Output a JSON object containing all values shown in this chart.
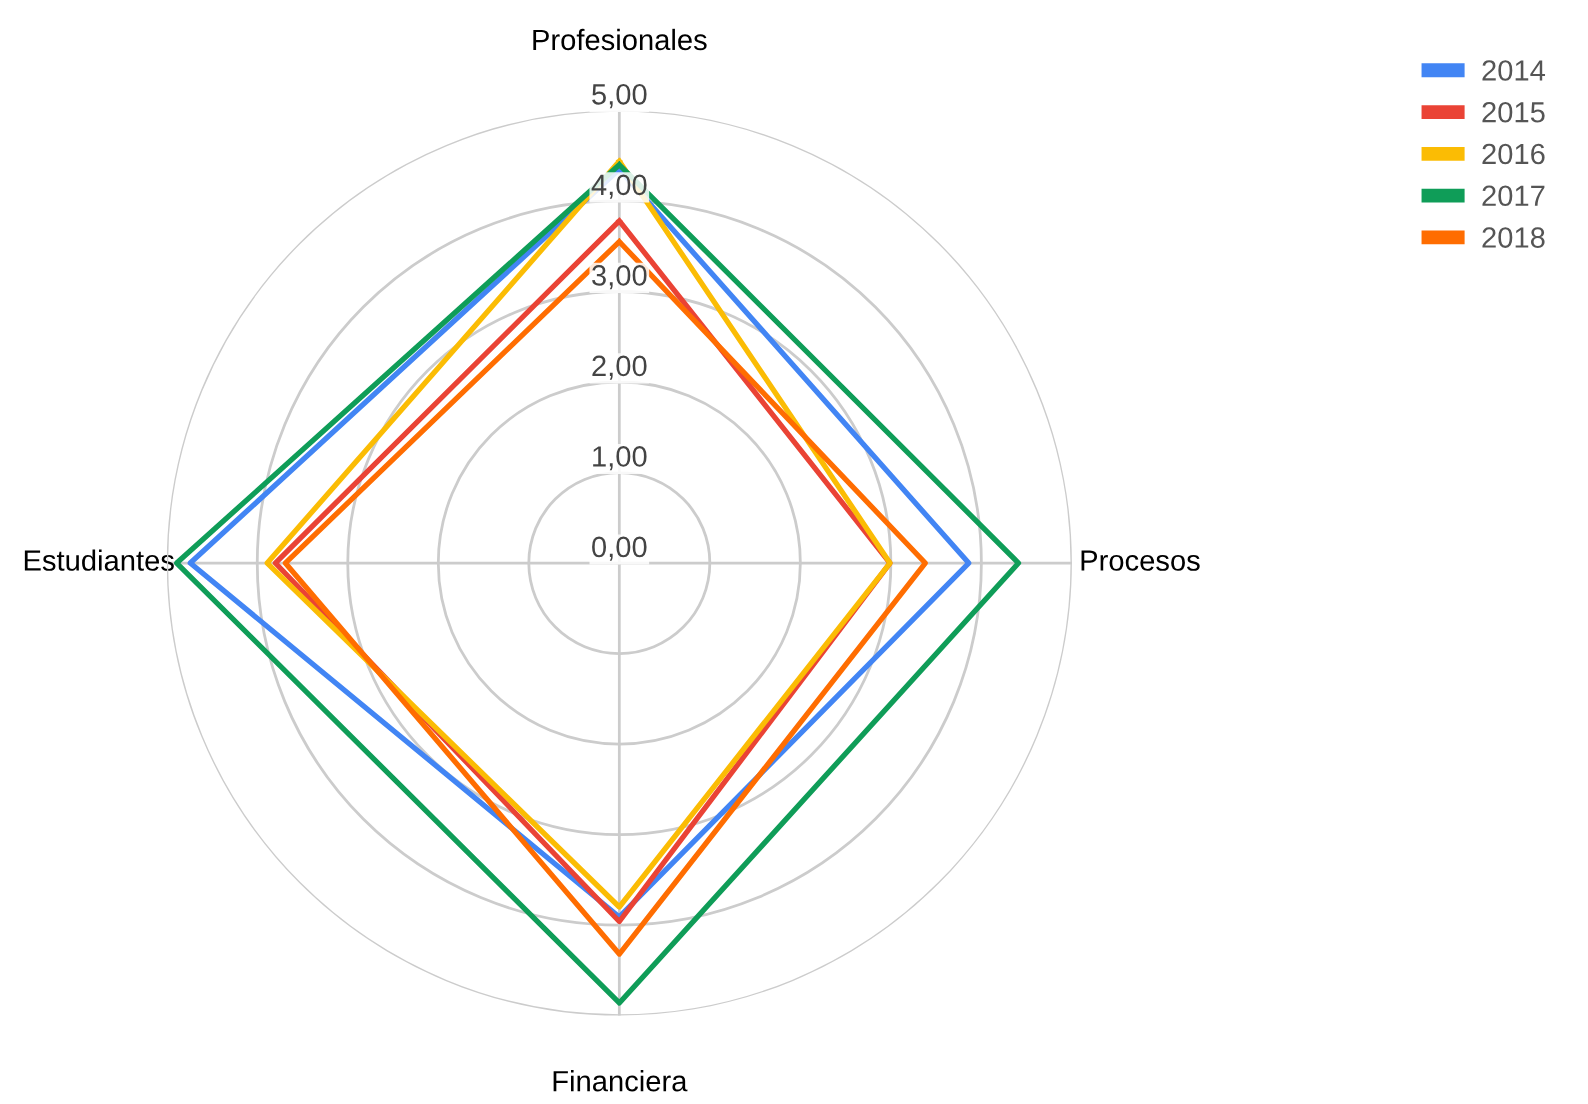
{
  "chart_data": {
    "type": "radar",
    "categories": [
      "Profesionales",
      "Procesos",
      "Financiera",
      "Estudiantes"
    ],
    "series": [
      {
        "name": "2014",
        "color": "#4285f4",
        "values": [
          4.35,
          3.86,
          3.91,
          4.74
        ]
      },
      {
        "name": "2015",
        "color": "#ea4335",
        "values": [
          3.78,
          2.99,
          3.96,
          3.8
        ]
      },
      {
        "name": "2016",
        "color": "#fbbc04",
        "values": [
          4.44,
          2.99,
          3.8,
          3.89
        ]
      },
      {
        "name": "2017",
        "color": "#0f9d58",
        "values": [
          4.4,
          4.41,
          4.86,
          4.89
        ]
      },
      {
        "name": "2018",
        "color": "#ff6d01",
        "values": [
          3.55,
          3.38,
          4.32,
          3.69
        ]
      }
    ],
    "ylim": [
      0,
      5
    ],
    "yticks": [
      {
        "value": 0,
        "label": "0,00"
      },
      {
        "value": 1,
        "label": "1,00"
      },
      {
        "value": 2,
        "label": "2,00"
      },
      {
        "value": 3,
        "label": "3,00"
      },
      {
        "value": 4,
        "label": "4,00"
      },
      {
        "value": 5,
        "label": "5,00"
      }
    ],
    "grid": true,
    "legend": "top right",
    "line_style": "solid",
    "marker": "none"
  }
}
